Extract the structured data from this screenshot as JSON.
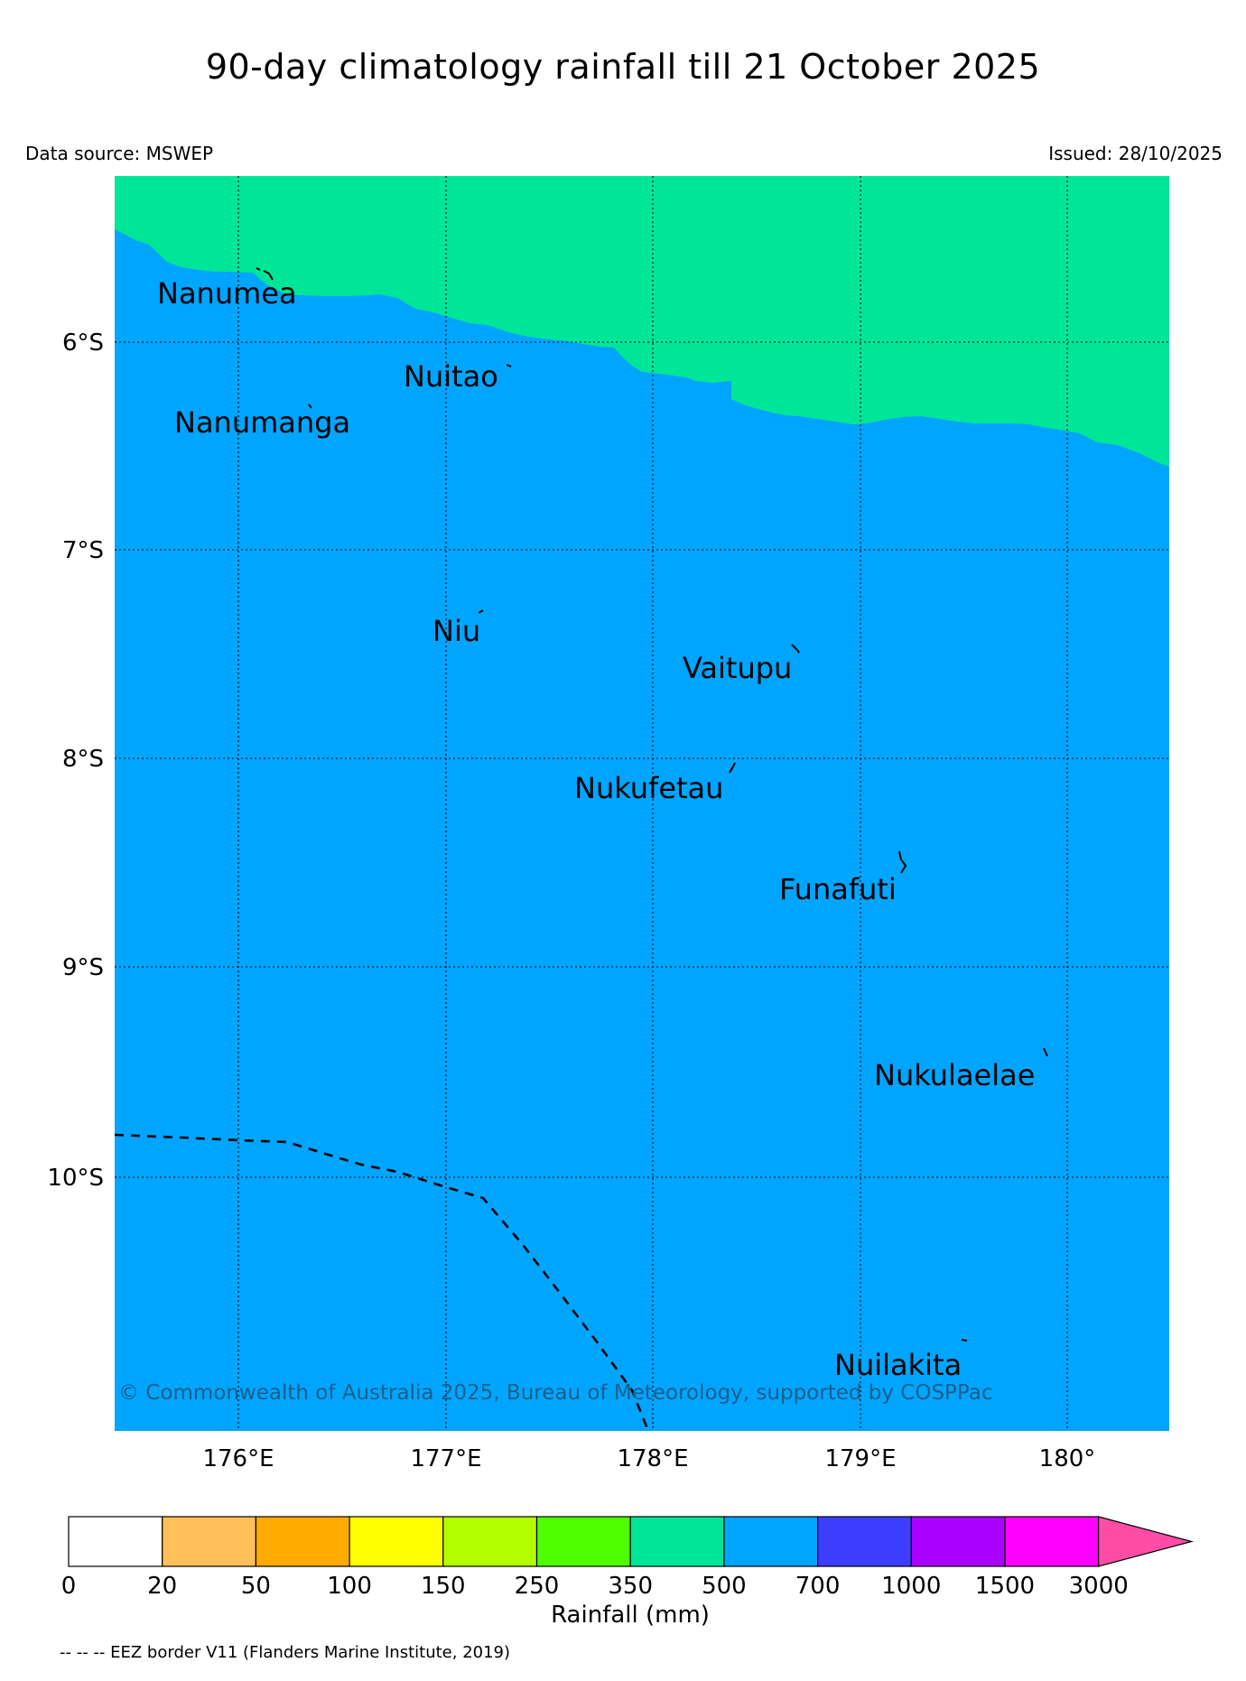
{
  "header": {
    "title": "90-day climatology rainfall till 21 October 2025",
    "data_source": "Data source: MSWEP",
    "issued": "Issued: 28/10/2025"
  },
  "map": {
    "lat_labels": [
      "6°S",
      "7°S",
      "8°S",
      "9°S",
      "10°S"
    ],
    "lon_labels": [
      "176°E",
      "177°E",
      "178°E",
      "179°E",
      "180°"
    ],
    "islands": {
      "nanumea": "Nanumea",
      "nuitao": "Nuitao",
      "nanumanga": "Nanumanga",
      "niu": "Niu",
      "vaitupu": "Vaitupu",
      "nukufetau": "Nukufetau",
      "funafuti": "Funafuti",
      "nukulaelae": "Nukulaelae",
      "nuilakita": "Nuilakita"
    },
    "copyright": "© Commonwealth of Australia 2025, Bureau of Meteorology, supported by COSPPac",
    "fill_colors": {
      "upper_band": "#00e699",
      "main_band": "#00a5ff"
    }
  },
  "legend": {
    "title": "Rainfall (mm)",
    "ticks": [
      "0",
      "20",
      "50",
      "100",
      "150",
      "250",
      "350",
      "500",
      "700",
      "1000",
      "1500",
      "3000"
    ],
    "colors": [
      "#ffffff",
      "#ffbf59",
      "#ffaa00",
      "#ffff00",
      "#b3ff00",
      "#4dff00",
      "#00e699",
      "#00a5ff",
      "#3d3dff",
      "#aa00ff",
      "#ff00ff"
    ],
    "extend_color": "#ff4da6"
  },
  "footnote": "-- -- -- EEZ border V11 (Flanders Marine Institute, 2019)"
}
